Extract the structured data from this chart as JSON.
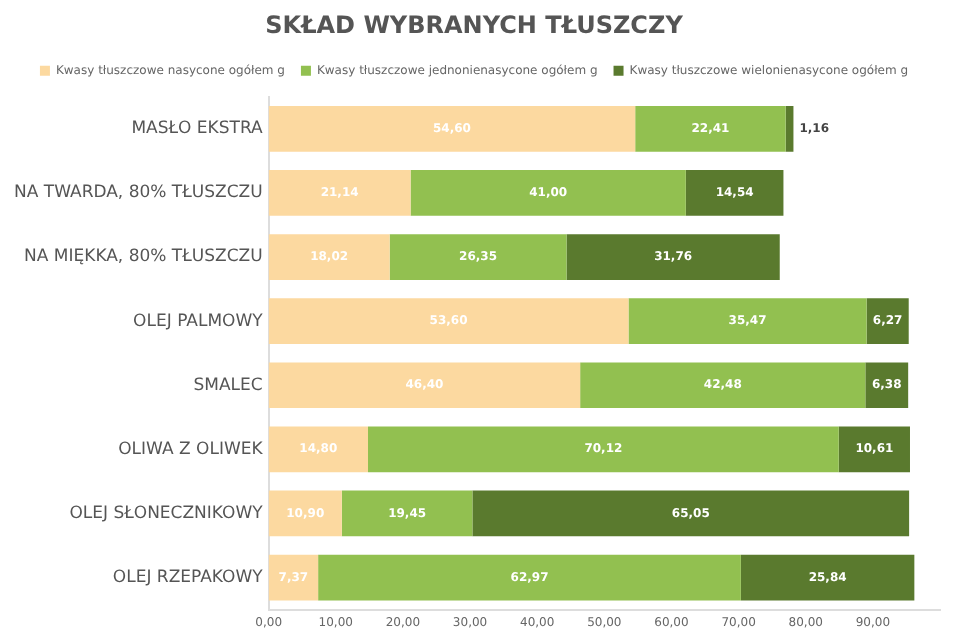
{
  "chart_data": {
    "type": "bar",
    "orientation": "horizontal",
    "stacked": true,
    "title": "SKŁAD WYBRANYCH TŁUSZCZY",
    "categories": [
      "MASŁO EKSTRA",
      "NA TWARDA, 80% TŁUSZCZU",
      "NA MIĘKKA, 80% TŁUSZCZU",
      "OLEJ PALMOWY",
      "SMALEC",
      "OLIWA Z OLIWEK",
      "OLEJ SŁONECZNIKOWY",
      "OLEJ RZEPAKOWY"
    ],
    "series": [
      {
        "name": "Kwasy tłuszczowe nasycone ogółem g",
        "color": "#fcd9a0",
        "values": [
          54.6,
          21.14,
          18.02,
          53.6,
          46.4,
          14.8,
          10.9,
          7.37
        ],
        "value_labels": [
          "54,60",
          "21,14",
          "18,02",
          "53,60",
          "46,40",
          "14,80",
          "10,90",
          "7,37"
        ]
      },
      {
        "name": "Kwasy tłuszczowe jednonienasycone ogółem g",
        "color": "#92c050",
        "values": [
          22.41,
          41.0,
          26.35,
          35.47,
          42.48,
          70.12,
          19.45,
          62.97
        ],
        "value_labels": [
          "22,41",
          "41,00",
          "26,35",
          "35,47",
          "42,48",
          "70,12",
          "19,45",
          "62,97"
        ]
      },
      {
        "name": "Kwasy tłuszczowe wielonienasycone ogółem g",
        "color": "#5a7a2e",
        "values": [
          1.16,
          14.54,
          31.76,
          6.27,
          6.38,
          10.61,
          65.05,
          25.84
        ],
        "value_labels": [
          "1,16",
          "14,54",
          "31,76",
          "6,27",
          "6,38",
          "10,61",
          "65,05",
          "25,84"
        ]
      }
    ],
    "xlim": [
      0,
      100
    ],
    "xticks": [
      {
        "value": 0,
        "label": "0,00"
      },
      {
        "value": 10,
        "label": "10,00"
      },
      {
        "value": 20,
        "label": "20,00"
      },
      {
        "value": 30,
        "label": "30,00"
      },
      {
        "value": 40,
        "label": "40,00"
      },
      {
        "value": 50,
        "label": "50,00"
      },
      {
        "value": 60,
        "label": "60,00"
      },
      {
        "value": 70,
        "label": "70,00"
      },
      {
        "value": 80,
        "label": "80,00"
      },
      {
        "value": 90,
        "label": "90,00"
      }
    ],
    "legend": "top",
    "grid": false
  }
}
